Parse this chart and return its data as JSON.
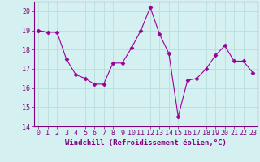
{
  "x": [
    0,
    1,
    2,
    3,
    4,
    5,
    6,
    7,
    8,
    9,
    10,
    11,
    12,
    13,
    14,
    15,
    16,
    17,
    18,
    19,
    20,
    21,
    22,
    23
  ],
  "y": [
    19.0,
    18.9,
    18.9,
    17.5,
    16.7,
    16.5,
    16.2,
    16.2,
    17.3,
    17.3,
    18.1,
    19.0,
    20.2,
    18.8,
    17.8,
    14.5,
    16.4,
    16.5,
    17.0,
    17.7,
    18.2,
    17.4,
    17.4,
    16.8
  ],
  "line_color": "#990099",
  "marker": "D",
  "markersize": 2.5,
  "linewidth": 0.8,
  "xlabel": "Windchill (Refroidissement éolien,°C)",
  "ylabel": "",
  "xlim": [
    -0.5,
    23.5
  ],
  "ylim": [
    14,
    20.5
  ],
  "yticks": [
    14,
    15,
    16,
    17,
    18,
    19,
    20
  ],
  "xticks": [
    0,
    1,
    2,
    3,
    4,
    5,
    6,
    7,
    8,
    9,
    10,
    11,
    12,
    13,
    14,
    15,
    16,
    17,
    18,
    19,
    20,
    21,
    22,
    23
  ],
  "bg_color": "#d4f0f0",
  "grid_color": "#b8dede",
  "tick_color": "#800080",
  "label_color": "#800080",
  "spine_color": "#800080",
  "xlabel_fontsize": 6.5,
  "tick_fontsize": 6.0
}
